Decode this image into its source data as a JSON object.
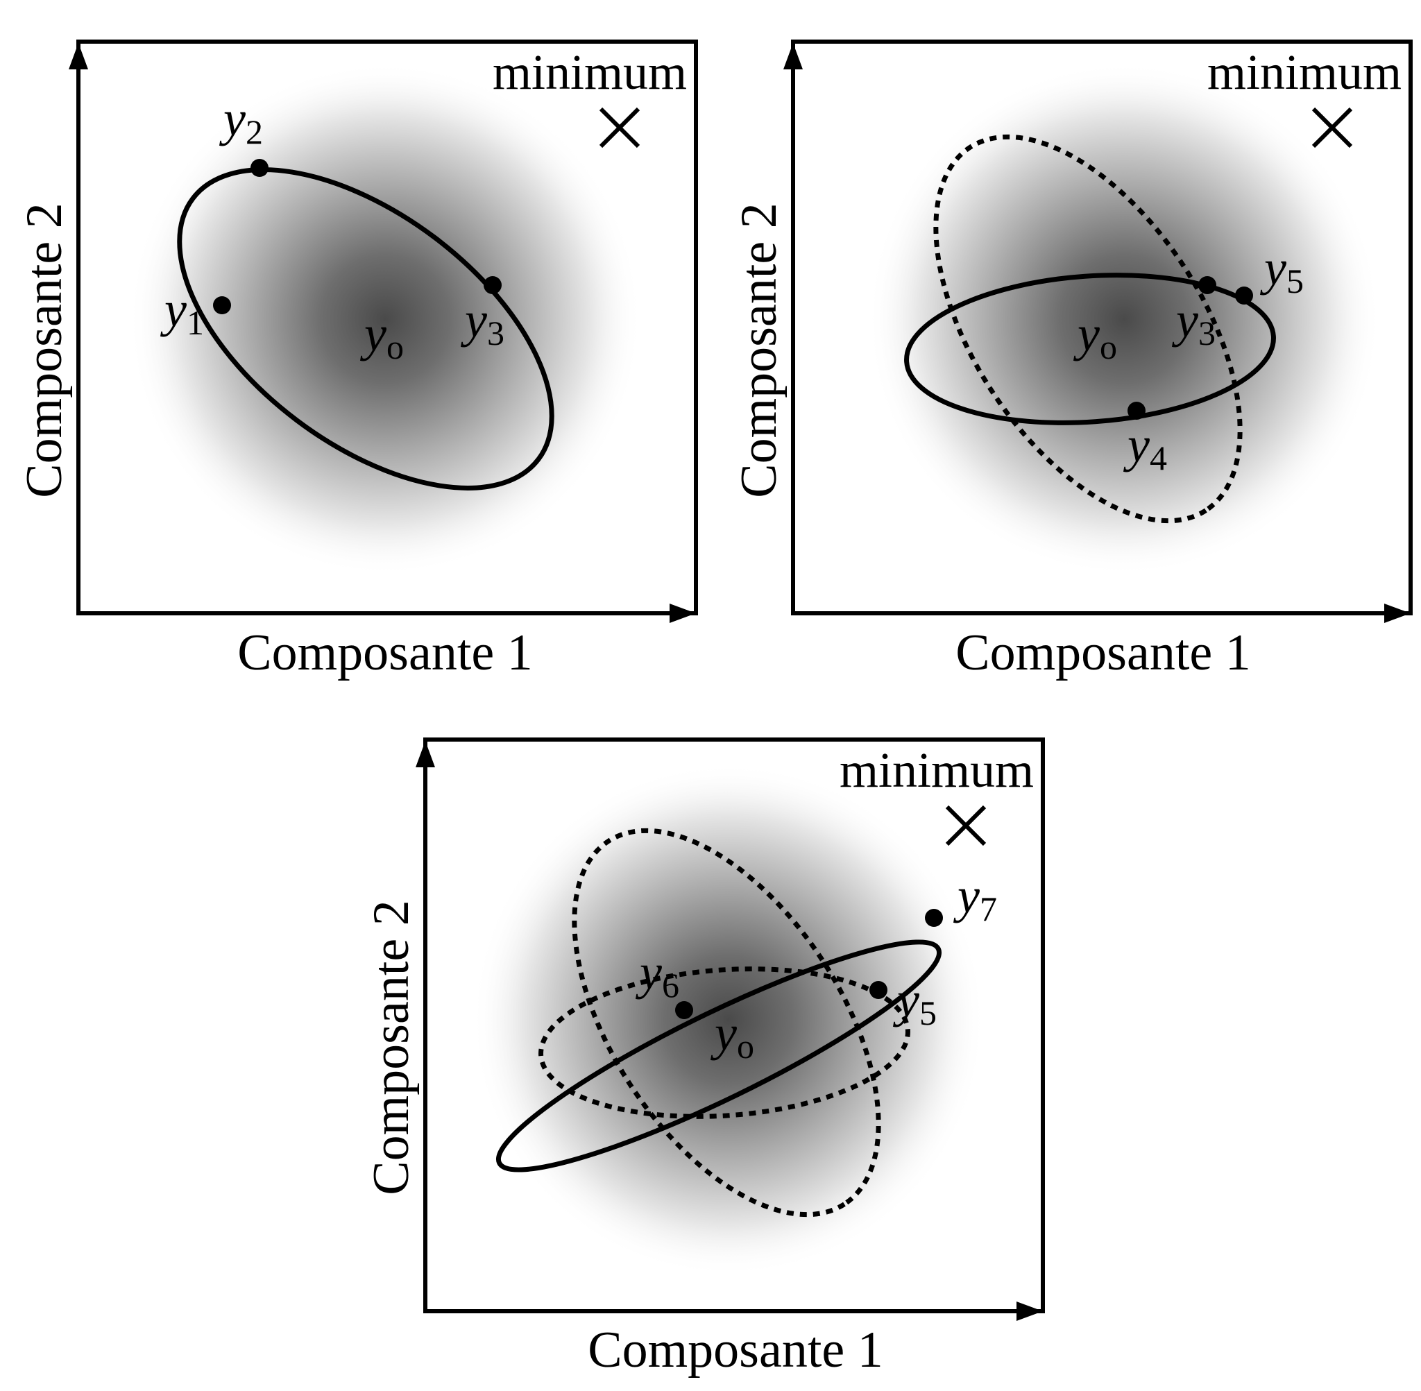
{
  "panels": [
    {
      "xlabel": "Composante 1",
      "ylabel": "Composante 2",
      "minimum_label": "minimum",
      "points": [
        {
          "main": "y",
          "sub": "1"
        },
        {
          "main": "y",
          "sub": "2"
        },
        {
          "main": "y",
          "sub": "3"
        }
      ],
      "center": {
        "main": "y",
        "sub": "o"
      }
    },
    {
      "xlabel": "Composante 1",
      "ylabel": "Composante 2",
      "minimum_label": "minimum",
      "points": [
        {
          "main": "y",
          "sub": "3"
        },
        {
          "main": "y",
          "sub": "5"
        },
        {
          "main": "y",
          "sub": "4"
        }
      ],
      "center": {
        "main": "y",
        "sub": "o"
      }
    },
    {
      "xlabel": "Composante 1",
      "ylabel": "Composante 2",
      "minimum_label": "minimum",
      "points": [
        {
          "main": "y",
          "sub": "7"
        },
        {
          "main": "y",
          "sub": "6"
        },
        {
          "main": "y",
          "sub": "5"
        }
      ],
      "center": {
        "main": "y",
        "sub": "o"
      }
    }
  ]
}
